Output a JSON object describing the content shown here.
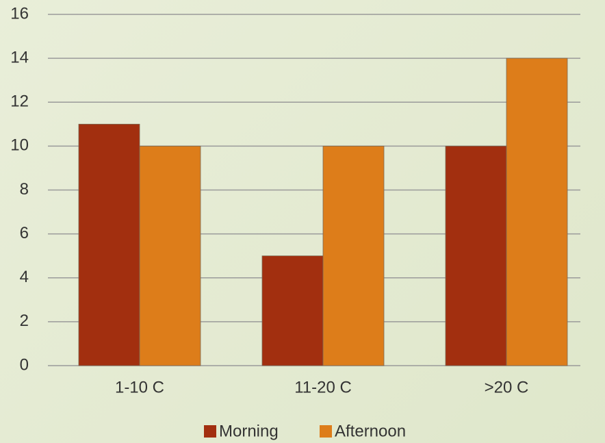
{
  "chart_data": {
    "type": "bar",
    "categories": [
      "1-10 C",
      "11-20 C",
      ">20 C"
    ],
    "series": [
      {
        "name": "Morning",
        "color": "#a22f0f",
        "values": [
          11,
          5,
          10
        ]
      },
      {
        "name": "Afternoon",
        "color": "#dd7d1a",
        "values": [
          10,
          10,
          14
        ]
      }
    ],
    "ylim": [
      0,
      16
    ],
    "yticks": [
      0,
      2,
      4,
      6,
      8,
      10,
      12,
      14,
      16
    ],
    "grid": true,
    "legend": "bottom"
  }
}
